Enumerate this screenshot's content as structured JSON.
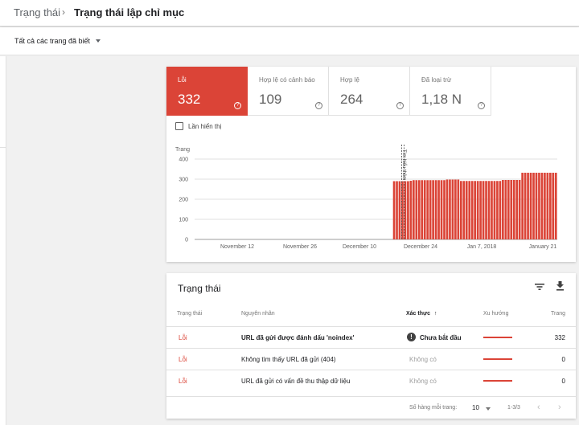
{
  "breadcrumb": {
    "parent": "Trạng thái",
    "separator": "›",
    "current": "Trạng thái lập chỉ mục"
  },
  "filter": {
    "label": "Tất cả các trang đã biết"
  },
  "metrics": [
    {
      "label": "Lỗi",
      "value": "332",
      "active": true
    },
    {
      "label": "Hợp lệ có cảnh báo",
      "value": "109",
      "active": false
    },
    {
      "label": "Hợp lệ",
      "value": "264",
      "active": false
    },
    {
      "label": "Đã loại trừ",
      "value": "1,18 N",
      "active": false
    }
  ],
  "help_glyph": "?",
  "impressions_label": "Lần hiển thị",
  "chart_data": {
    "type": "bar",
    "ylabel": "Trang",
    "ylim": [
      0,
      400
    ],
    "yticks": [
      "0",
      "100",
      "200",
      "300",
      "400"
    ],
    "xticks": [
      "November 12",
      "November 26",
      "December 10",
      "December 24",
      "Jan 7, 2018",
      "January 21"
    ],
    "annotation": "Tìm hiểu thêm",
    "color": "#db4437",
    "values": [
      0,
      0,
      0,
      0,
      0,
      0,
      0,
      0,
      0,
      0,
      0,
      0,
      0,
      0,
      0,
      0,
      0,
      0,
      0,
      0,
      0,
      0,
      0,
      0,
      0,
      0,
      0,
      0,
      0,
      0,
      0,
      0,
      0,
      0,
      0,
      0,
      0,
      0,
      0,
      0,
      0,
      0,
      0,
      0,
      0,
      0,
      0,
      0,
      0,
      0,
      0,
      0,
      0,
      0,
      0,
      0,
      0,
      0,
      0,
      0,
      0,
      0,
      0,
      0,
      0,
      0,
      0,
      0,
      0,
      0,
      0,
      290,
      290,
      290,
      290,
      290,
      290,
      292,
      295,
      295,
      295,
      295,
      295,
      295,
      295,
      295,
      295,
      295,
      295,
      295,
      298,
      298,
      298,
      298,
      298,
      291,
      291,
      291,
      291,
      291,
      291,
      291,
      291,
      291,
      291,
      291,
      291,
      291,
      291,
      291,
      296,
      296,
      296,
      296,
      296,
      296,
      296,
      332,
      332,
      332,
      332,
      332,
      332,
      332,
      332,
      332,
      332,
      332,
      332,
      332
    ]
  },
  "status_table": {
    "title": "Trạng thái",
    "headers": {
      "status": "Trạng thái",
      "reason": "Nguyên nhân",
      "verify": "Xác thực",
      "trend": "Xu hướng",
      "pages": "Trang"
    },
    "sort_arrow": "↑",
    "warn_glyph": "!",
    "rows": [
      {
        "status": "Lỗi",
        "reason": "URL đã gửi được đánh dấu 'noindex'",
        "verify": "Chưa bắt đầu",
        "pages": "332"
      },
      {
        "status": "Lỗi",
        "reason": "Không tìm thấy URL đã gửi (404)",
        "verify": "Không có",
        "pages": "0"
      },
      {
        "status": "Lỗi",
        "reason": "URL đã gửi có vấn đề thu thập dữ liệu",
        "verify": "Không có",
        "pages": "0"
      }
    ],
    "footer": {
      "rows_per_page_label": "Số hàng mỗi trang:",
      "rows_per_page": "10",
      "range": "1-3/3",
      "prev": "‹",
      "next": "›"
    }
  }
}
